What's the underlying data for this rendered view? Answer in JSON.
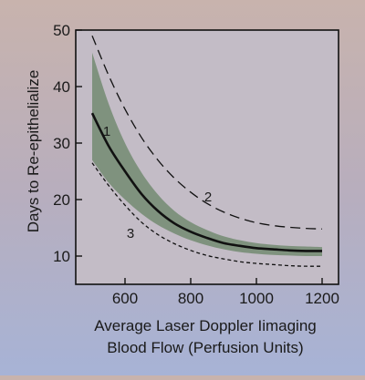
{
  "chart_data": {
    "type": "line",
    "title": "",
    "xlabel_lines": [
      "Average Laser Doppler Iimaging",
      "Blood Flow (Perfusion Units)"
    ],
    "ylabel": "Days to Re-epithelialize",
    "xlim": [
      450,
      1250
    ],
    "ylim": [
      5,
      50
    ],
    "xticks": [
      600,
      800,
      1000,
      1200
    ],
    "yticks": [
      10,
      20,
      30,
      40,
      50
    ],
    "band": {
      "x": [
        500,
        550,
        600,
        650,
        700,
        750,
        800,
        850,
        900,
        950,
        1000,
        1050,
        1100,
        1150,
        1200
      ],
      "upper": [
        46.0,
        37.0,
        30.0,
        24.8,
        20.9,
        18.0,
        16.0,
        14.6,
        13.5,
        12.8,
        12.3,
        12.0,
        11.8,
        11.7,
        11.6
      ],
      "lower": [
        27.0,
        23.0,
        20.0,
        17.5,
        15.5,
        14.0,
        12.8,
        11.9,
        11.2,
        10.7,
        10.4,
        10.2,
        10.1,
        10.0,
        10.0
      ],
      "color": "#7f927e"
    },
    "series": [
      {
        "label": "1",
        "style": "solid",
        "x": [
          500,
          550,
          600,
          650,
          700,
          750,
          800,
          850,
          900,
          950,
          1000,
          1050,
          1100,
          1150,
          1200
        ],
        "y": [
          35.3,
          29.5,
          25.0,
          21.0,
          18.0,
          15.8,
          14.3,
          13.2,
          12.3,
          11.8,
          11.4,
          11.2,
          11.0,
          10.9,
          10.9
        ]
      },
      {
        "label": "2",
        "style": "dashed",
        "x": [
          500,
          550,
          600,
          650,
          700,
          750,
          800,
          850,
          900,
          950,
          1000,
          1050,
          1100,
          1150,
          1200
        ],
        "y": [
          49.0,
          42.0,
          36.0,
          31.0,
          27.0,
          23.8,
          21.3,
          19.3,
          17.8,
          16.7,
          15.9,
          15.4,
          15.1,
          14.9,
          14.8
        ]
      },
      {
        "label": "3",
        "style": "dotted",
        "x": [
          500,
          550,
          600,
          650,
          700,
          750,
          800,
          850,
          900,
          950,
          1000,
          1050,
          1100,
          1150,
          1200
        ],
        "y": [
          26.5,
          22.5,
          19.0,
          16.0,
          13.8,
          12.2,
          11.0,
          10.1,
          9.5,
          9.0,
          8.7,
          8.5,
          8.3,
          8.2,
          8.2
        ]
      }
    ]
  }
}
